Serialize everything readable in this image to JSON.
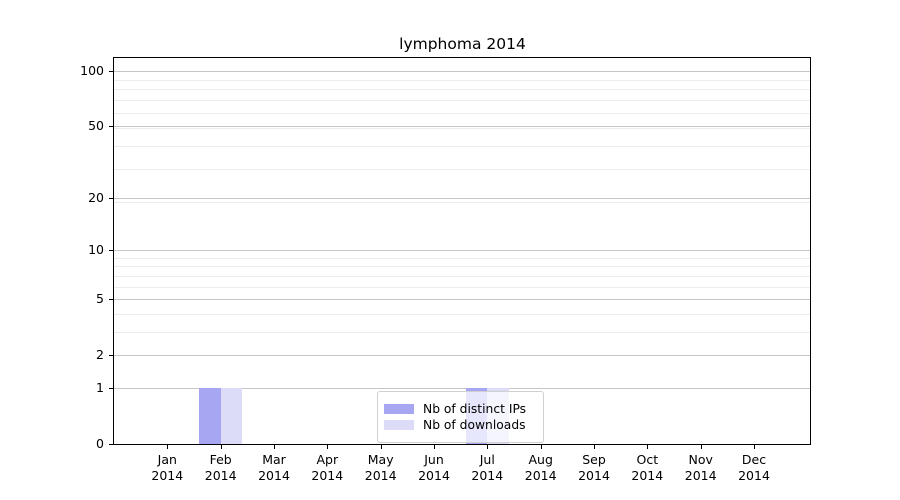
{
  "chart_data": {
    "type": "bar",
    "title": "lymphoma 2014",
    "months": [
      "Jan",
      "Feb",
      "Mar",
      "Apr",
      "May",
      "Jun",
      "Jul",
      "Aug",
      "Sep",
      "Oct",
      "Nov",
      "Dec"
    ],
    "year": "2014",
    "categories": [
      "Jan 2014",
      "Feb 2014",
      "Mar 2014",
      "Apr 2014",
      "May 2014",
      "Jun 2014",
      "Jul 2014",
      "Aug 2014",
      "Sep 2014",
      "Oct 2014",
      "Nov 2014",
      "Dec 2014"
    ],
    "series": [
      {
        "name": "Nb of distinct IPs",
        "color": "#a6a6f2",
        "values": [
          0,
          1,
          0,
          0,
          0,
          0,
          1,
          0,
          0,
          0,
          0,
          0
        ]
      },
      {
        "name": "Nb of downloads",
        "color": "#dcdcf9",
        "values": [
          0,
          1,
          0,
          0,
          0,
          0,
          1,
          0,
          0,
          0,
          0,
          0
        ]
      }
    ],
    "xlabel": "",
    "ylabel": "",
    "yscale": "log1p",
    "ylim": [
      0,
      117
    ],
    "y_ticks": [
      0,
      1,
      2,
      5,
      10,
      20,
      50,
      100
    ],
    "y_tick_labels": [
      "0",
      "1",
      "2",
      "5",
      "10",
      "20",
      "50",
      "100"
    ],
    "y_minor_ticks": [
      3,
      4,
      6,
      7,
      8,
      9,
      19,
      29,
      39,
      49,
      59,
      69,
      79,
      89,
      99
    ],
    "grid": "both",
    "legend_position": "lower center",
    "colors": {
      "bar_distinct_ips": "#a6a6f2",
      "bar_downloads": "#dcdcf9",
      "grid_major": "#c6c6c6",
      "grid_minor": "#ececec",
      "axis": "#000000",
      "text": "#000000",
      "legend_border": "#d0d0d0",
      "background": "#ffffff"
    }
  }
}
